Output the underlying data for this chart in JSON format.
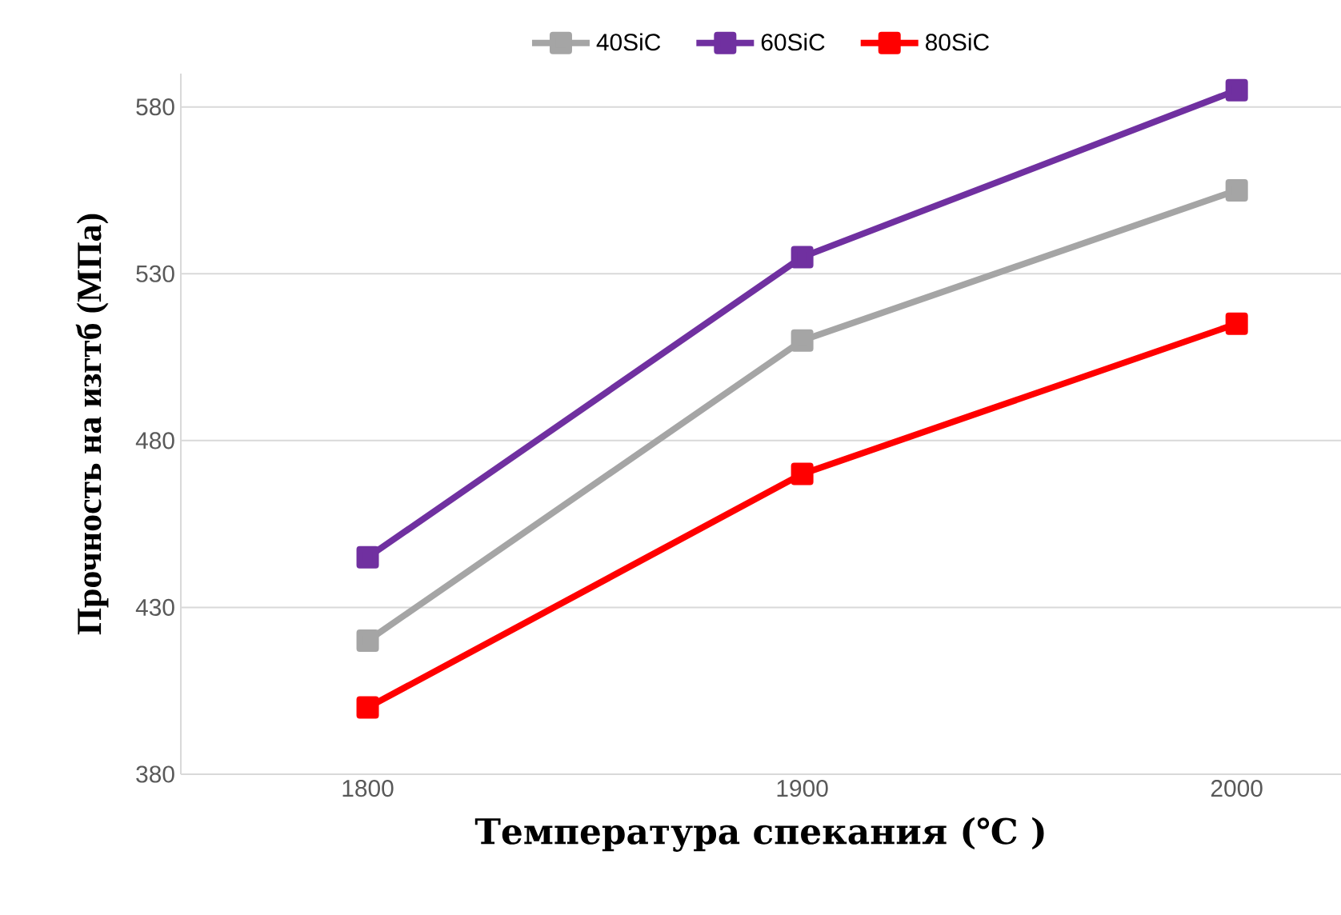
{
  "chart_data": {
    "type": "line",
    "xlabel": "Температура спекания (℃ )",
    "ylabel": "Прочность на изгтб (МПа)",
    "categories": [
      "1800",
      "1900",
      "2000"
    ],
    "series": [
      {
        "name": "40SiC",
        "color": "#a5a5a5",
        "values": [
          420,
          510,
          555
        ]
      },
      {
        "name": "60SiC",
        "color": "#7030a0",
        "values": [
          445,
          535,
          585
        ]
      },
      {
        "name": "80SiC",
        "color": "#ff0000",
        "values": [
          400,
          470,
          515
        ]
      }
    ],
    "ylim": [
      380,
      590
    ],
    "yticks": [
      380,
      430,
      480,
      530,
      580
    ],
    "grid": "y",
    "legend": "top",
    "marker": "square",
    "line_style": "solid"
  }
}
